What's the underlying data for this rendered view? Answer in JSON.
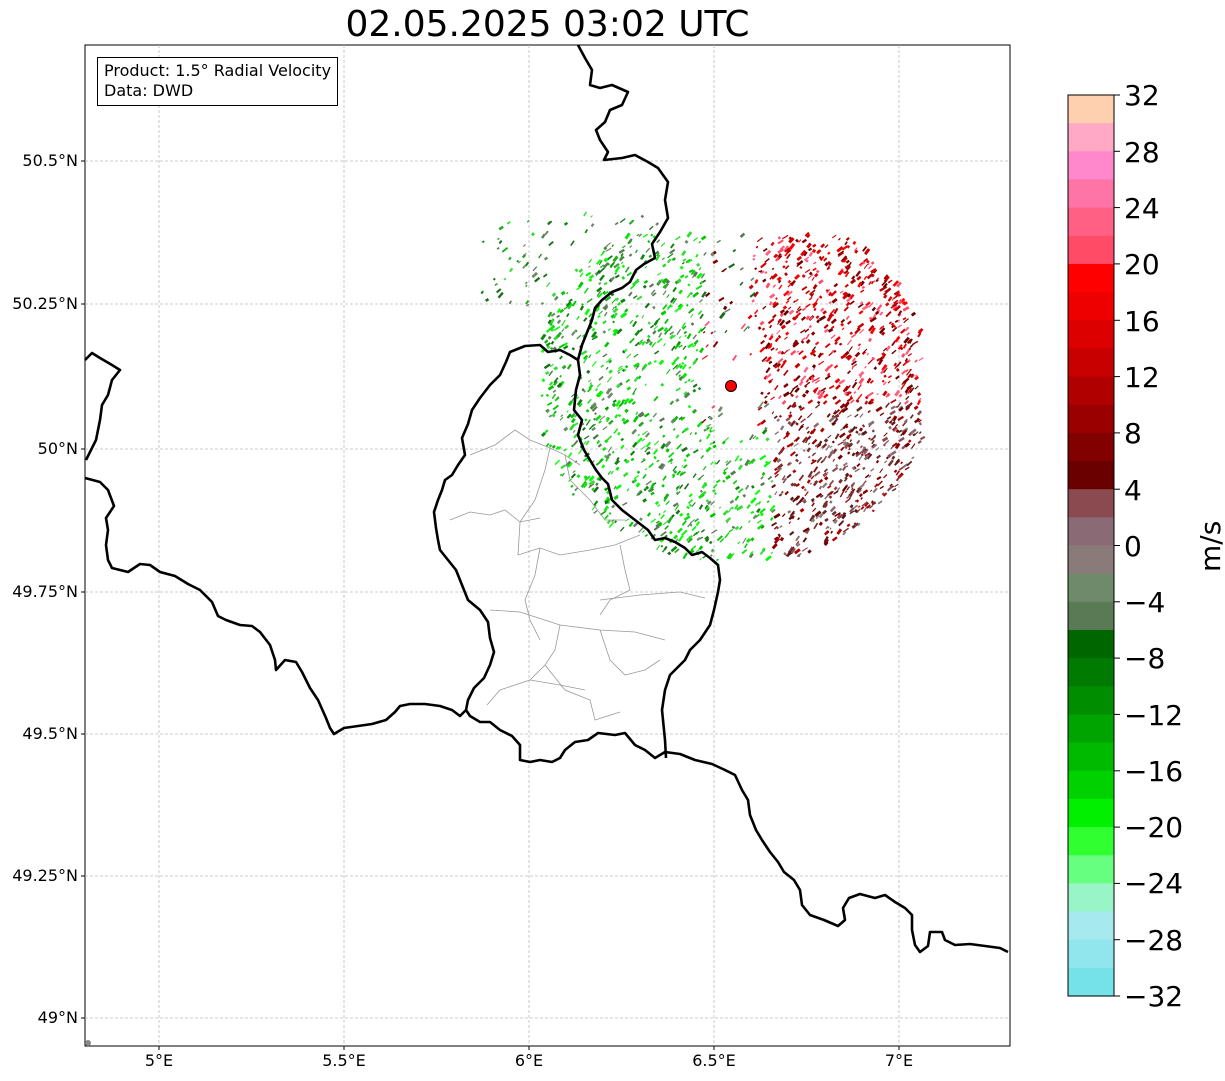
{
  "title": "02.05.2025 03:02 UTC",
  "info_box": {
    "product": "Product: 1.5° Radial Velocity",
    "source": "Data: DWD"
  },
  "axes": {
    "lat_labels": [
      "50.5°N",
      "50.25°N",
      "50°N",
      "49.75°N",
      "49.5°N",
      "49.25°N",
      "49°N"
    ],
    "lon_labels": [
      "5°E",
      "5.5°E",
      "6°E",
      "6.5°E",
      "7°E"
    ],
    "gridlines": true
  },
  "radar_site": {
    "marker_color": "#ff0000"
  },
  "colorbar": {
    "unit": "m/s",
    "tick_labels": [
      "32",
      "28",
      "24",
      "20",
      "16",
      "12",
      "8",
      "4",
      "0",
      "−4",
      "−8",
      "−12",
      "−16",
      "−20",
      "−24",
      "−28",
      "−32"
    ],
    "range": [
      -32,
      32
    ],
    "colors_top_to_bottom": [
      "#ffd0b0",
      "#ffa9c6",
      "#ff88cc",
      "#ff74a6",
      "#ff6083",
      "#ff4b66",
      "#ff0000",
      "#ee0000",
      "#dd0000",
      "#c80000",
      "#b00000",
      "#9a0000",
      "#820000",
      "#6a0000",
      "#8a4a50",
      "#8a6a74",
      "#8a7a7a",
      "#6e8a6a",
      "#5a7a56",
      "#006600",
      "#007a00",
      "#008e00",
      "#00a400",
      "#00ba00",
      "#00d200",
      "#00f000",
      "#30ff30",
      "#66ff80",
      "#99f5c8",
      "#a6eaf0",
      "#90e6ec",
      "#74e2e8"
    ]
  }
}
